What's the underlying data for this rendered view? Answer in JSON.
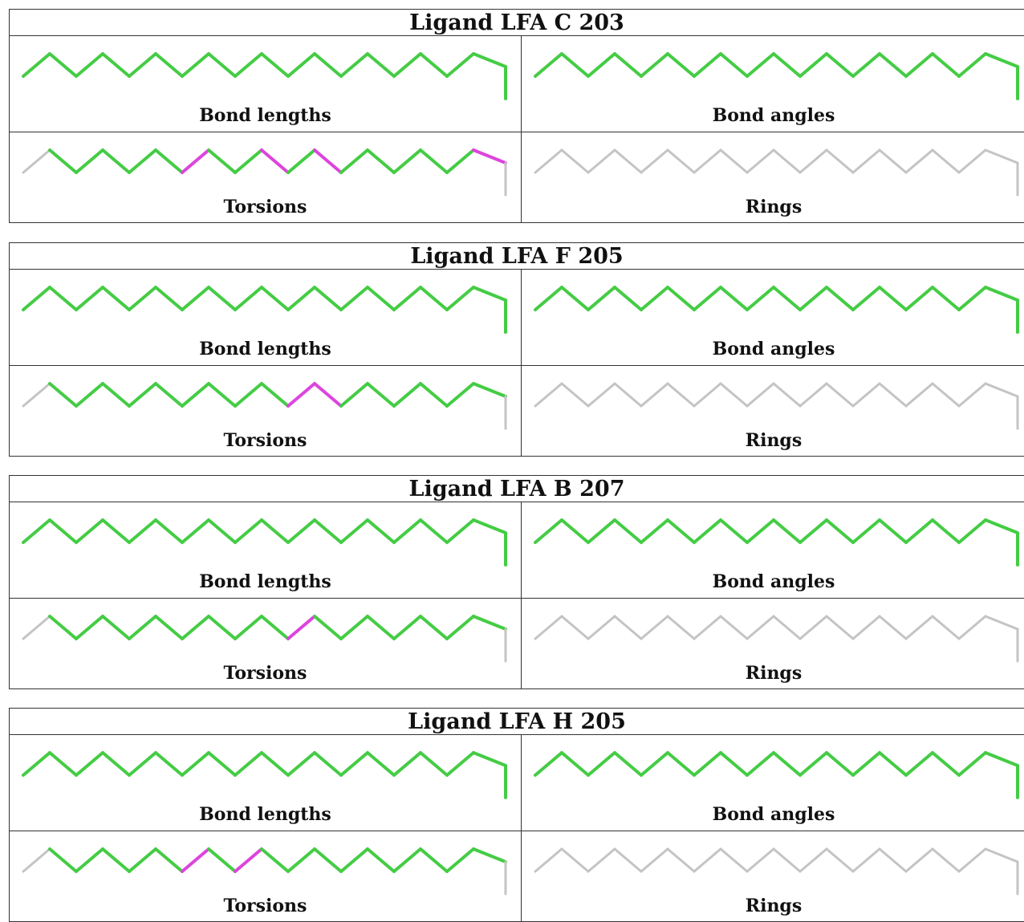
{
  "colors": {
    "ok": "#44cc44",
    "outlier": "#dd44dd",
    "not_applicable": "#c4c4c4"
  },
  "labels": {
    "bond_lengths": "Bond lengths",
    "bond_angles": "Bond angles",
    "torsions": "Torsions",
    "rings": "Rings"
  },
  "panels": [
    {
      "title": "Ligand LFA C 203",
      "torsion_outliers": [
        6,
        9,
        11,
        17
      ]
    },
    {
      "title": "Ligand LFA F 205",
      "torsion_outliers": [
        10,
        11
      ]
    },
    {
      "title": "Ligand LFA B 207",
      "torsion_outliers": [
        10
      ]
    },
    {
      "title": "Ligand LFA H 205",
      "torsion_outliers": [
        6,
        8
      ]
    }
  ]
}
